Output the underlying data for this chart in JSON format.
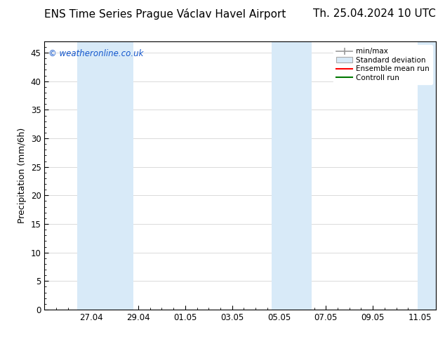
{
  "title_left": "ENS Time Series Prague Václav Havel Airport",
  "title_right": "Th. 25.04.2024 10 UTC",
  "ylabel": "Precipitation (mm/6h)",
  "watermark": "© weatheronline.co.uk",
  "ylim": [
    0,
    47
  ],
  "yticks": [
    0,
    5,
    10,
    15,
    20,
    25,
    30,
    35,
    40,
    45
  ],
  "bg_color": "#ffffff",
  "plot_bg": "#ffffff",
  "xtick_labels": [
    "27.04",
    "29.04",
    "01.05",
    "03.05",
    "05.05",
    "07.05",
    "09.05",
    "11.05"
  ],
  "xtick_positions": [
    2,
    4,
    6,
    8,
    10,
    12,
    14,
    16
  ],
  "xlim": [
    0,
    16.7
  ],
  "blue_bands": [
    [
      1.4,
      2.0
    ],
    [
      2.0,
      3.8
    ],
    [
      9.7,
      10.1
    ],
    [
      10.1,
      11.4
    ],
    [
      15.9,
      16.7
    ]
  ],
  "band_color": "#d8eaf8",
  "grid_color": "#cccccc",
  "spine_color": "#000000",
  "title_fontsize": 11,
  "label_fontsize": 9,
  "tick_fontsize": 8.5,
  "watermark_color": "#1155cc",
  "legend_items": [
    {
      "label": "min/max",
      "type": "minmax",
      "color": "#999999"
    },
    {
      "label": "Standard deviation",
      "type": "patch",
      "color": "#d8eaf8",
      "edgecolor": "#aaaaaa"
    },
    {
      "label": "Ensemble mean run",
      "type": "line",
      "color": "#ff0000"
    },
    {
      "label": "Controll run",
      "type": "line",
      "color": "#007700"
    }
  ]
}
